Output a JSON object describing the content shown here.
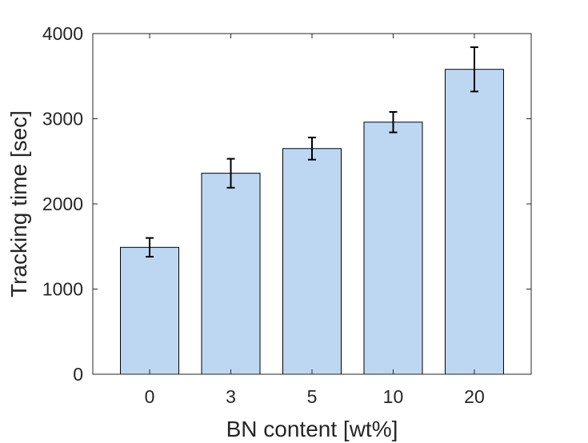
{
  "chart_data": {
    "type": "bar",
    "categories": [
      "0",
      "3",
      "5",
      "10",
      "20"
    ],
    "values": [
      1490,
      2360,
      2650,
      2960,
      3580
    ],
    "error": [
      110,
      170,
      130,
      120,
      260
    ],
    "xlabel": "BN content [wt%]",
    "ylabel": "Tracking time [sec]",
    "ylim": [
      0,
      4000
    ],
    "yticks": [
      0,
      1000,
      2000,
      3000,
      4000
    ],
    "grid": false,
    "bar_color": "#bdd7f3",
    "bar_edge_color": "#000000"
  }
}
